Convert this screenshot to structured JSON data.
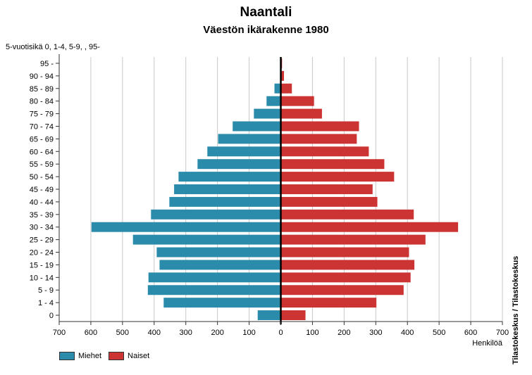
{
  "chart_data": {
    "type": "bar",
    "orientation": "horizontal",
    "layout": "population-pyramid",
    "title": "Naantali",
    "subtitle": "Väestön ikärakenne 1980",
    "ylabel": "5-vuotisikä 0, 1-4, 5-9, , 95-",
    "xlabel": "Henkilöä",
    "xlim": [
      -700,
      700
    ],
    "x_ticks": [
      700,
      600,
      500,
      400,
      300,
      200,
      100,
      0,
      100,
      200,
      300,
      400,
      500,
      600,
      700
    ],
    "grid": true,
    "legend_position": "bottom-left",
    "categories": [
      "95 -",
      "90 - 94",
      "85 - 89",
      "80 - 84",
      "75 - 79",
      "70 - 74",
      "65 - 69",
      "60 - 64",
      "55 - 59",
      "50 - 54",
      "45 - 49",
      "40 - 44",
      "35 - 39",
      "30 - 34",
      "25 - 29",
      "20 - 24",
      "15 - 19",
      "10 - 14",
      "5 - 9",
      "1 - 4",
      "0"
    ],
    "series": [
      {
        "name": "Miehet",
        "color": "#2b8bab",
        "values": [
          0,
          0,
          20,
          45,
          85,
          152,
          198,
          232,
          263,
          323,
          337,
          352,
          410,
          598,
          467,
          392,
          383,
          418,
          420,
          370,
          73
        ]
      },
      {
        "name": "Naiset",
        "color": "#cc3333",
        "values": [
          4,
          10,
          35,
          105,
          130,
          247,
          240,
          278,
          327,
          358,
          290,
          305,
          420,
          560,
          457,
          405,
          422,
          410,
          388,
          302,
          78
        ]
      }
    ],
    "source": "Tilastokeskus / Tilastokeskus"
  }
}
